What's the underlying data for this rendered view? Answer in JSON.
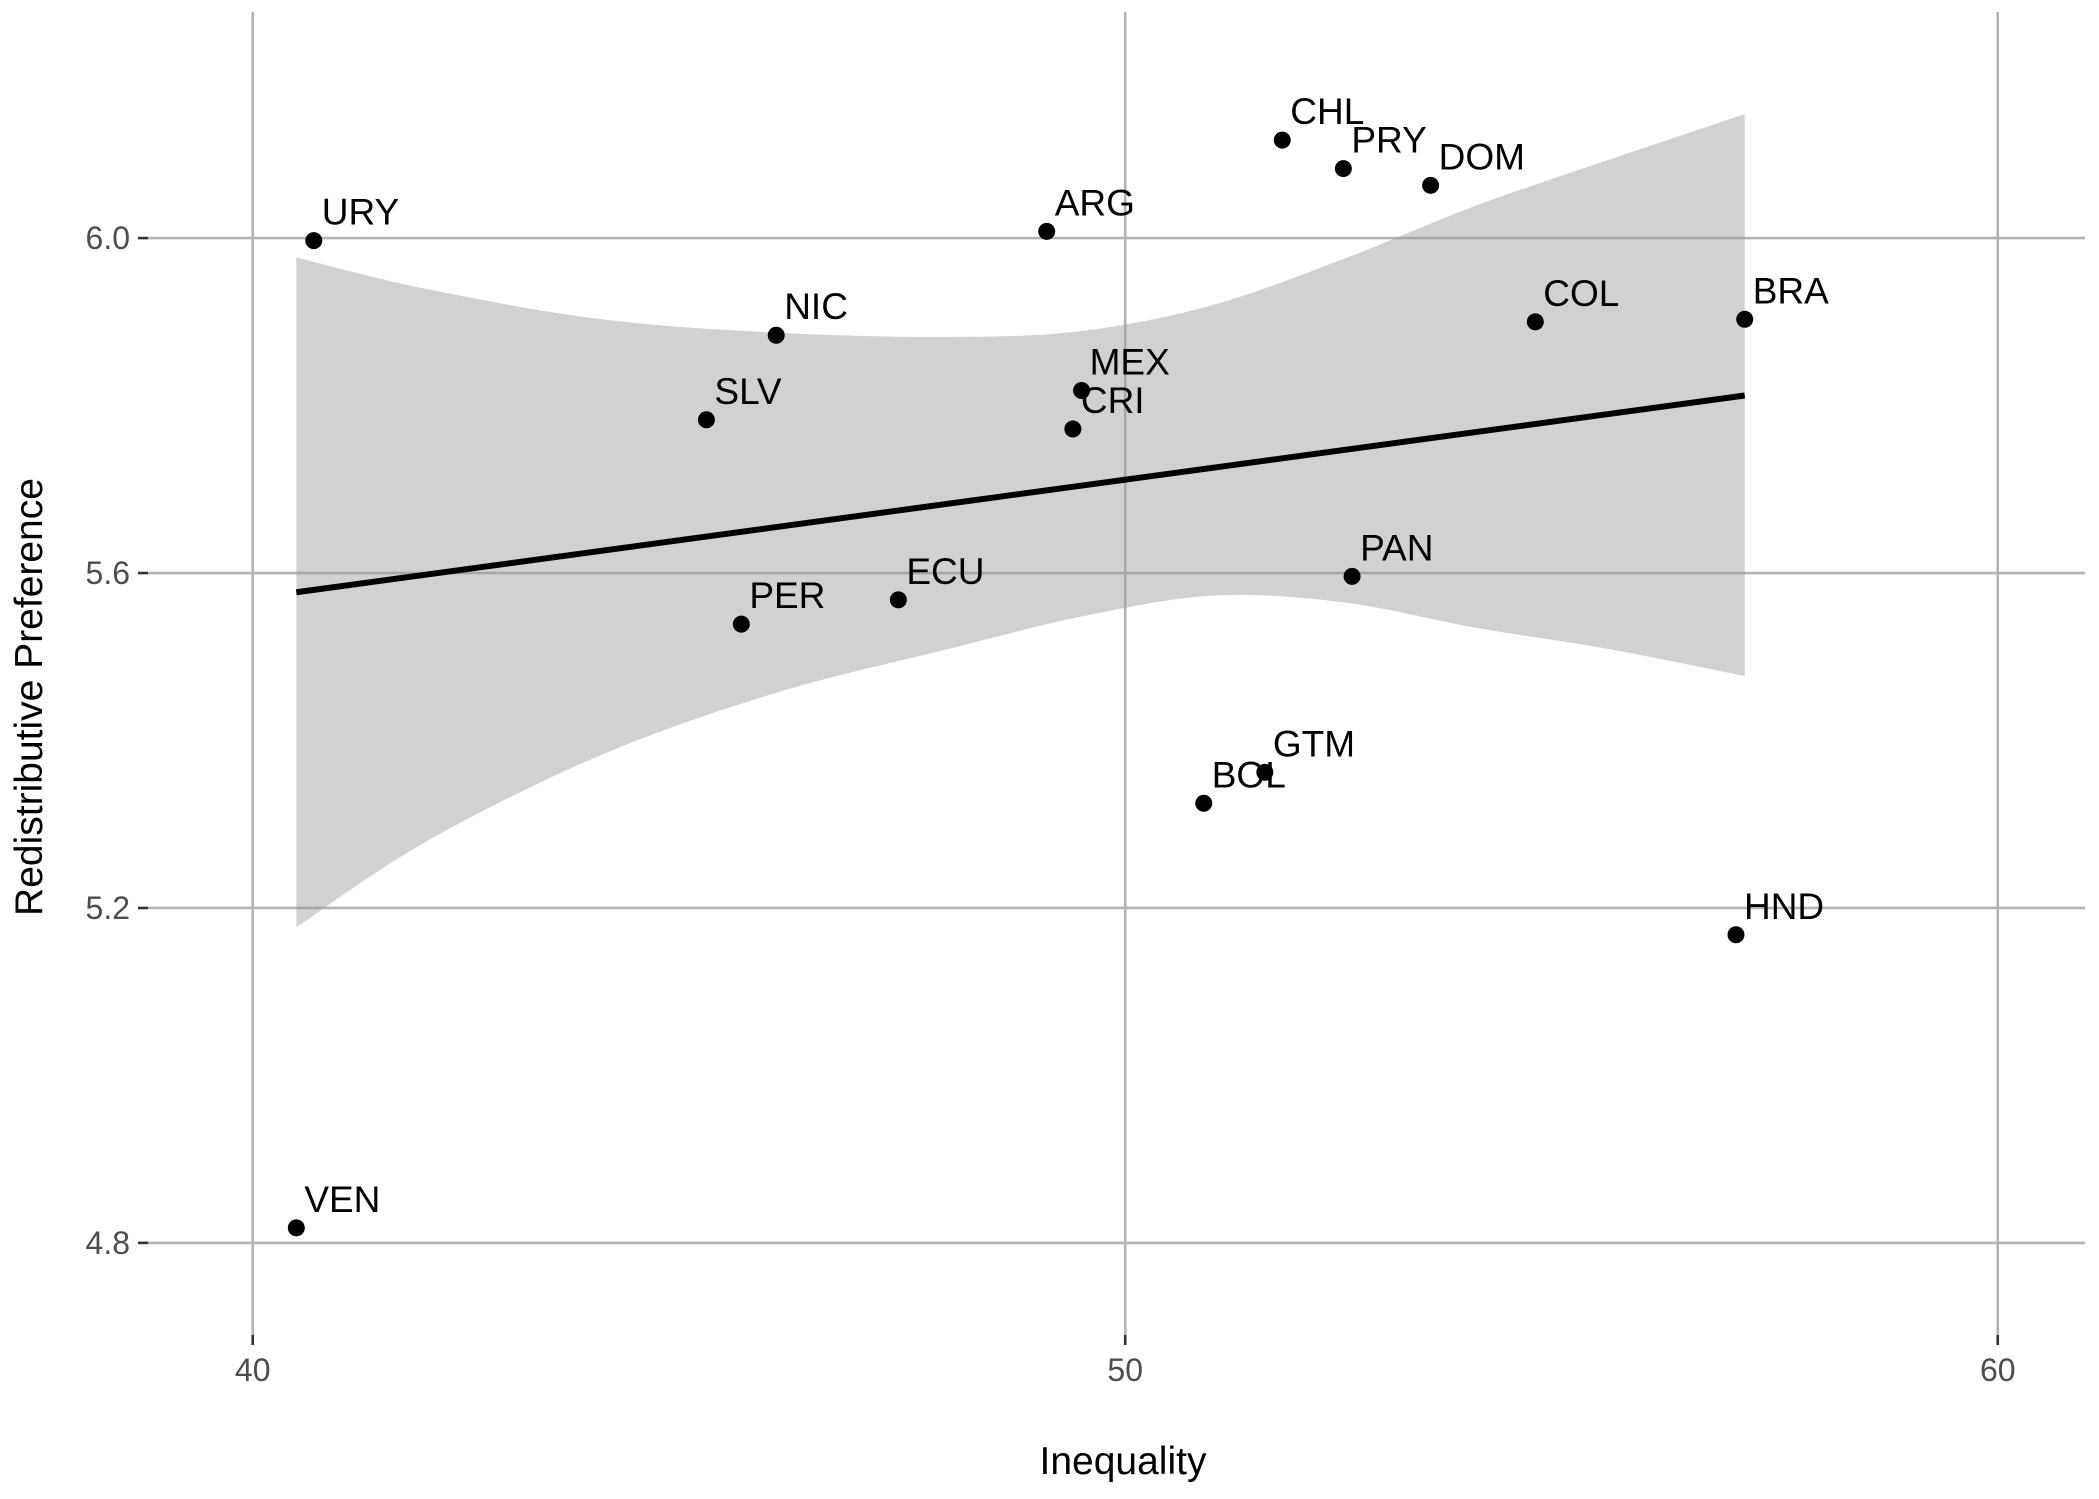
{
  "chart_data": {
    "type": "scatter",
    "title": "",
    "xlabel": "Inequality",
    "ylabel": "Redistributive Preference",
    "xlim": [
      38.8,
      61.0
    ],
    "ylim": [
      4.69,
      6.27
    ],
    "x_ticks": [
      40,
      50,
      60
    ],
    "y_ticks": [
      4.8,
      5.2,
      5.6,
      6.0
    ],
    "x_tick_labels": [
      "40",
      "50",
      "60"
    ],
    "y_tick_labels": [
      "4.8",
      "5.2",
      "5.6",
      "6.0"
    ],
    "grid": true,
    "legend": "none",
    "points": [
      {
        "label": "URY",
        "x": 40.7,
        "y": 5.997
      },
      {
        "label": "ARG",
        "x": 49.1,
        "y": 6.008
      },
      {
        "label": "CHL",
        "x": 51.8,
        "y": 6.117
      },
      {
        "label": "PRY",
        "x": 52.5,
        "y": 6.083
      },
      {
        "label": "DOM",
        "x": 53.5,
        "y": 6.063
      },
      {
        "label": "NIC",
        "x": 46.0,
        "y": 5.884
      },
      {
        "label": "COL",
        "x": 54.7,
        "y": 5.9
      },
      {
        "label": "BRA",
        "x": 57.1,
        "y": 5.903
      },
      {
        "label": "SLV",
        "x": 45.2,
        "y": 5.783
      },
      {
        "label": "MEX",
        "x": 49.5,
        "y": 5.818
      },
      {
        "label": "CRI",
        "x": 49.4,
        "y": 5.772
      },
      {
        "label": "PAN",
        "x": 52.6,
        "y": 5.596
      },
      {
        "label": "ECU",
        "x": 47.4,
        "y": 5.568
      },
      {
        "label": "PER",
        "x": 45.6,
        "y": 5.539
      },
      {
        "label": "GTM",
        "x": 51.6,
        "y": 5.362
      },
      {
        "label": "BOL",
        "x": 50.9,
        "y": 5.325
      },
      {
        "label": "HND",
        "x": 57.0,
        "y": 5.168
      },
      {
        "label": "VEN",
        "x": 40.5,
        "y": 4.818
      }
    ],
    "fit_line": {
      "x": [
        40.5,
        57.1
      ],
      "y": [
        5.577,
        5.812
      ]
    },
    "confidence_band": {
      "x": [
        40.5,
        42.0,
        44.0,
        46.0,
        48.0,
        49.5,
        51.0,
        52.5,
        54.0,
        55.5,
        57.1
      ],
      "upper": [
        5.977,
        5.939,
        5.903,
        5.887,
        5.882,
        5.889,
        5.92,
        5.975,
        6.038,
        6.092,
        6.148
      ],
      "lower": [
        5.177,
        5.28,
        5.383,
        5.457,
        5.51,
        5.548,
        5.573,
        5.565,
        5.535,
        5.51,
        5.477
      ]
    }
  }
}
